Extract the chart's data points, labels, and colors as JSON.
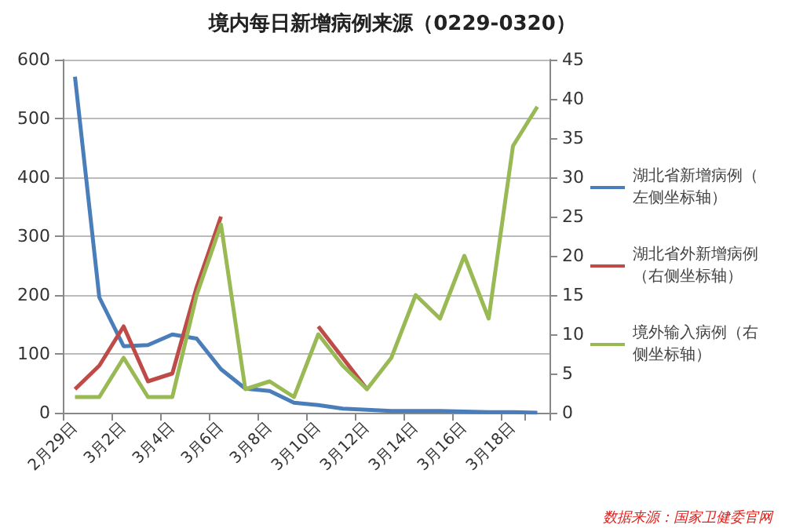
{
  "chart_data": {
    "type": "line",
    "title": "境内每日新增病例来源（0229-0320）",
    "categories": [
      "2月29日",
      null,
      "3月2日",
      null,
      "3月4日",
      null,
      "3月6日",
      null,
      "3月8日",
      null,
      "3月10日",
      null,
      "3月12日",
      null,
      "3月14日",
      null,
      "3月16日",
      null,
      "3月18日",
      null
    ],
    "series": [
      {
        "name": "湖北省新增病例（左侧坐标轴）",
        "color": "#4a7ebb",
        "values": [
          571,
          196,
          113,
          115,
          133,
          126,
          74,
          41,
          37,
          17,
          13,
          7,
          5,
          3,
          3,
          3,
          2,
          1,
          1,
          0
        ]
      },
      {
        "name": "湖北省外新增病例（右侧坐标轴）",
        "color": "#be4b48",
        "axis": "y2",
        "values": [
          3,
          6,
          11,
          4,
          5,
          16,
          25,
          null,
          null,
          null,
          11,
          7,
          3,
          null,
          null,
          null,
          null,
          null,
          null,
          null
        ]
      },
      {
        "name": "境外输入病例（右侧坐标轴）",
        "color": "#98b954",
        "axis": "y2",
        "values": [
          2,
          2,
          7,
          2,
          2,
          15,
          24,
          3,
          4,
          2,
          10,
          6,
          3,
          7,
          15,
          12,
          20,
          12,
          34,
          39
        ]
      }
    ],
    "ylim": [
      0,
      600
    ],
    "yticks": [
      0,
      100,
      200,
      300,
      400,
      500,
      600
    ],
    "y2lim": [
      0,
      45
    ],
    "y2ticks": [
      0,
      5,
      10,
      15,
      20,
      25,
      30,
      35,
      40,
      45
    ],
    "grid": "y",
    "legend": "right",
    "marker": "none",
    "line_style": "solid",
    "annotations": [
      "数据来源：国家卫健委官网"
    ]
  }
}
